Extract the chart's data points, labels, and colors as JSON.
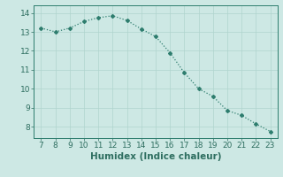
{
  "x": [
    7,
    8,
    9,
    10,
    11,
    12,
    13,
    14,
    15,
    16,
    17,
    18,
    19,
    20,
    21,
    22,
    23
  ],
  "y": [
    13.2,
    13.0,
    13.2,
    13.55,
    13.75,
    13.85,
    13.6,
    13.15,
    12.75,
    11.9,
    10.85,
    10.0,
    9.6,
    8.85,
    8.6,
    8.15,
    7.75
  ],
  "line_color": "#2e7d6e",
  "marker": "D",
  "marker_size": 2.0,
  "bg_color": "#cde8e4",
  "grid_color": "#b0d4ce",
  "xlabel": "Humidex (Indice chaleur)",
  "xlabel_fontsize": 7.5,
  "ylabel_ticks": [
    8,
    9,
    10,
    11,
    12,
    13,
    14
  ],
  "xticks": [
    7,
    8,
    9,
    10,
    11,
    12,
    13,
    14,
    15,
    16,
    17,
    18,
    19,
    20,
    21,
    22,
    23
  ],
  "ylim": [
    7.4,
    14.4
  ],
  "xlim": [
    6.5,
    23.5
  ],
  "tick_color": "#2e6e60",
  "tick_fontsize": 6.5,
  "spine_color": "#2e7d6e",
  "linewidth": 0.9
}
